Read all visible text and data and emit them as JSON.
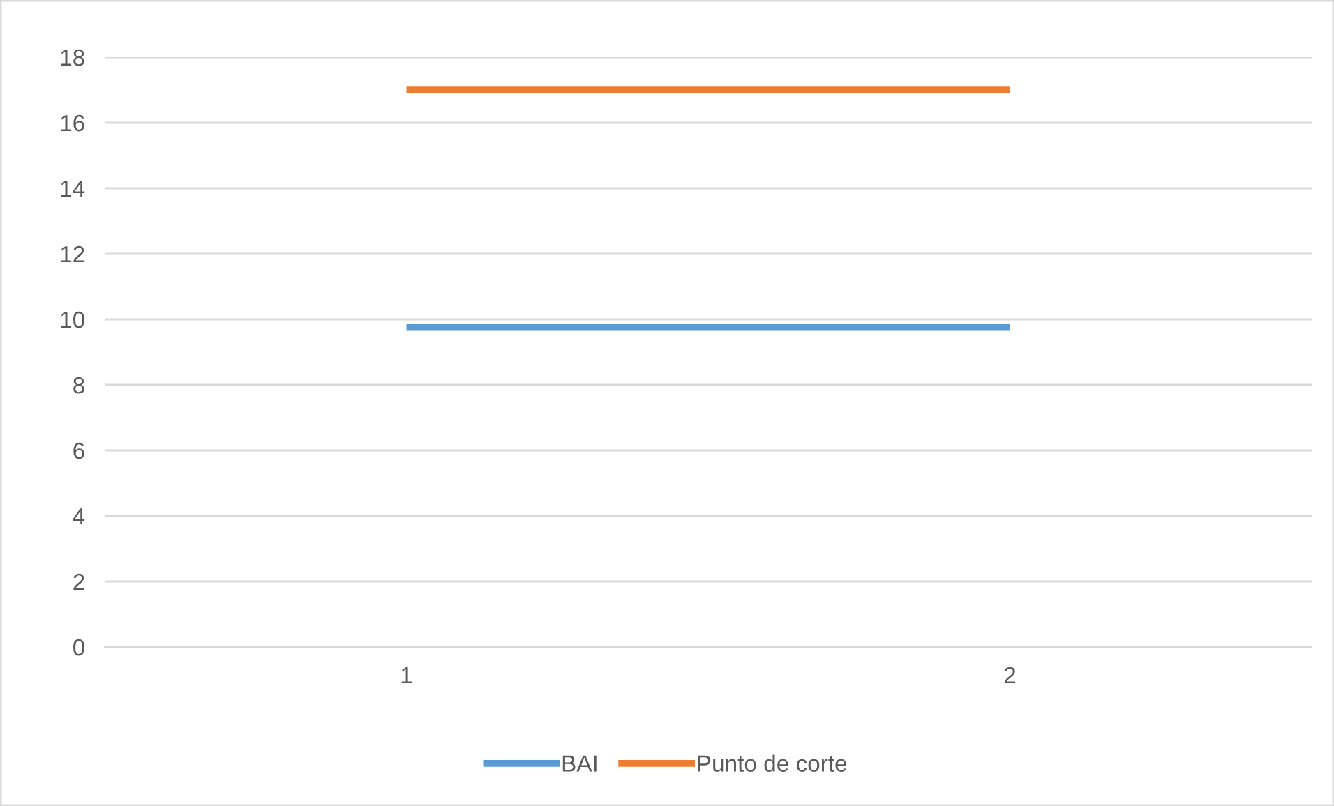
{
  "chart_data": {
    "type": "line",
    "categories": [
      "1",
      "2"
    ],
    "series": [
      {
        "name": "BAI",
        "color": "#5b9bd5",
        "values": [
          9.75,
          9.75
        ]
      },
      {
        "name": "Punto de corte",
        "color": "#ed7d31",
        "values": [
          17,
          17
        ]
      }
    ],
    "ylim": [
      0,
      18
    ],
    "yticks": [
      0,
      2,
      4,
      6,
      8,
      10,
      12,
      14,
      16,
      18
    ],
    "grid": "y",
    "legend": "bottom",
    "marker": "none",
    "line_style": "solid"
  }
}
